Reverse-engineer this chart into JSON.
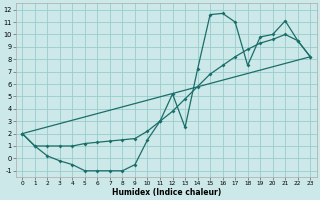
{
  "title": "",
  "xlabel": "Humidex (Indice chaleur)",
  "bg_color": "#cce8e8",
  "grid_color": "#99cccc",
  "line_color": "#1a6e6a",
  "xlim": [
    -0.5,
    23.5
  ],
  "ylim": [
    -1.5,
    12.5
  ],
  "xticks": [
    0,
    1,
    2,
    3,
    4,
    5,
    6,
    7,
    8,
    9,
    10,
    11,
    12,
    13,
    14,
    15,
    16,
    17,
    18,
    19,
    20,
    21,
    22,
    23
  ],
  "yticks": [
    -1,
    0,
    1,
    2,
    3,
    4,
    5,
    6,
    7,
    8,
    9,
    10,
    11,
    12
  ],
  "line1_x": [
    0,
    1,
    2,
    3,
    4,
    5,
    6,
    7,
    8,
    9,
    10,
    11,
    12,
    13,
    14,
    15,
    16,
    17,
    18,
    19,
    20,
    21,
    22,
    23
  ],
  "line1_y": [
    2.0,
    1.0,
    0.2,
    -0.2,
    -0.5,
    -1.0,
    -1.0,
    -1.0,
    -1.0,
    -0.5,
    1.5,
    3.0,
    5.2,
    2.5,
    7.2,
    11.6,
    11.7,
    11.0,
    7.5,
    9.8,
    10.0,
    11.1,
    9.5,
    8.2
  ],
  "line2_x": [
    0,
    1,
    2,
    3,
    4,
    5,
    6,
    7,
    8,
    9,
    10,
    11,
    12,
    13,
    14,
    15,
    16,
    17,
    18,
    19,
    20,
    21,
    22,
    23
  ],
  "line2_y": [
    2.0,
    1.0,
    1.0,
    1.0,
    1.0,
    1.2,
    1.3,
    1.4,
    1.5,
    1.6,
    2.2,
    3.0,
    3.8,
    4.8,
    5.8,
    6.8,
    7.5,
    8.2,
    8.8,
    9.3,
    9.6,
    10.0,
    9.5,
    8.2
  ],
  "line3_x": [
    0,
    23
  ],
  "line3_y": [
    2.0,
    8.2
  ]
}
